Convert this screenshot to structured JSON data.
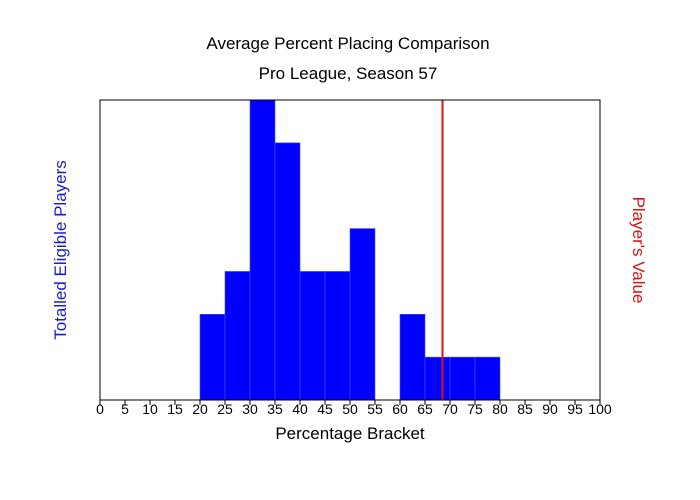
{
  "chart_data": {
    "type": "bar",
    "title": "Average Percent Placing Comparison",
    "subtitle": "Pro League, Season 57",
    "xlabel": "Percentage Bracket",
    "ylabel": "Totalled Eligible Players",
    "ylabel_right": "Player's Value",
    "xlim": [
      0,
      100
    ],
    "ylim": [
      0,
      7
    ],
    "x_ticks": [
      0,
      5,
      10,
      15,
      20,
      25,
      30,
      35,
      40,
      45,
      50,
      55,
      60,
      65,
      70,
      75,
      80,
      85,
      90,
      95,
      100
    ],
    "bin_width": 5,
    "bins": [
      {
        "start": 20,
        "count": 2
      },
      {
        "start": 25,
        "count": 3
      },
      {
        "start": 30,
        "count": 7
      },
      {
        "start": 35,
        "count": 6
      },
      {
        "start": 40,
        "count": 3
      },
      {
        "start": 45,
        "count": 3
      },
      {
        "start": 50,
        "count": 4
      },
      {
        "start": 60,
        "count": 2
      },
      {
        "start": 65,
        "count": 1
      },
      {
        "start": 70,
        "count": 1
      },
      {
        "start": 75,
        "count": 1
      }
    ],
    "player_value": 68.5,
    "colors": {
      "bars": "#0000ff",
      "bar_edge": "#4d4dff",
      "player_line": "#dd1111",
      "ylabel_left": "#1a1acc",
      "ylabel_right": "#dd1111"
    },
    "grid": false,
    "legend": "none"
  }
}
